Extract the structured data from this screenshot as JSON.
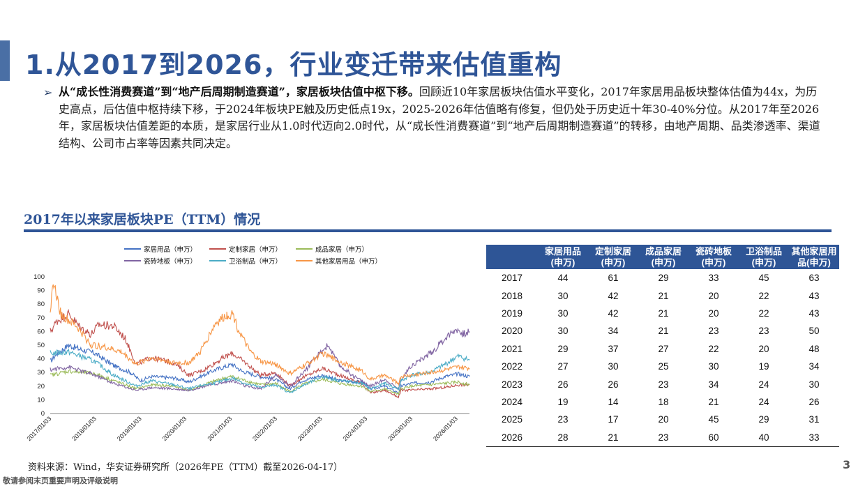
{
  "header": {
    "title_num": "1.",
    "title_text": "从2017到2026，行业变迁带来估值重构"
  },
  "bullet": {
    "bold": "从“成长性消费赛道”到“地产后周期制造赛道”，家居板块估值中枢下移。",
    "text": "回顾近10年家居板块估值水平变化，2017年家居用品板块整体估值为44x，为历史高点，后估值中枢持续下移，于2024年板块PE触及历史低点19x，2025-2026年估值略有修复，但仍处于历史近十年30-40%分位。从2017年至2026年，家居板块估值差距的本质，是家居行业从1.0时代迈向2.0时代，从“成长性消费赛道”到“地产后周期制造赛道”的转移，由地产周期、品类渗透率、渠道结构、公司市占率等因素共同决定。"
  },
  "section_title": "2017年以来家居板块PE（TTM）情况",
  "colors": {
    "accent": "#2f5597",
    "table_header": "#2e5596"
  },
  "chart_data": {
    "type": "line",
    "ylim": [
      0,
      100
    ],
    "yticks": [
      "0",
      "10",
      "20",
      "30",
      "40",
      "50",
      "60",
      "70",
      "80",
      "90",
      "100"
    ],
    "x_ticks": [
      "2017/01/03",
      "2018/01/03",
      "2019/01/03",
      "2020/01/03",
      "2021/01/03",
      "2022/01/03",
      "2023/01/03",
      "2024/01/03",
      "2025/01/03",
      "2026/01/03"
    ],
    "x_range": [
      "2017-01-03",
      "2026-04-17"
    ],
    "series": [
      {
        "name": "家居用品（申万）",
        "color": "#4472c4",
        "points": [
          [
            "2017-01-03",
            38
          ],
          [
            "2017-03-01",
            44
          ],
          [
            "2017-06-01",
            50
          ],
          [
            "2017-09-01",
            47
          ],
          [
            "2018-01-01",
            44
          ],
          [
            "2018-06-01",
            35
          ],
          [
            "2018-10-15",
            30
          ],
          [
            "2019-01-01",
            24
          ],
          [
            "2019-04-01",
            27
          ],
          [
            "2019-10-01",
            26
          ],
          [
            "2020-02-01",
            23
          ],
          [
            "2020-05-01",
            27
          ],
          [
            "2020-09-01",
            32
          ],
          [
            "2021-01-15",
            36
          ],
          [
            "2021-04-01",
            31
          ],
          [
            "2021-09-01",
            27
          ],
          [
            "2022-01-01",
            25
          ],
          [
            "2022-04-25",
            18
          ],
          [
            "2022-08-01",
            24
          ],
          [
            "2023-01-15",
            28
          ],
          [
            "2023-06-01",
            24
          ],
          [
            "2023-12-01",
            23
          ],
          [
            "2024-02-05",
            18
          ],
          [
            "2024-06-01",
            20
          ],
          [
            "2024-09-20",
            15
          ],
          [
            "2024-10-10",
            20
          ],
          [
            "2025-01-01",
            22
          ],
          [
            "2025-06-01",
            23
          ],
          [
            "2025-10-01",
            27
          ],
          [
            "2026-01-15",
            29
          ],
          [
            "2026-04-17",
            27
          ]
        ]
      },
      {
        "name": "定制家居（申万）",
        "color": "#c0504d",
        "points": [
          [
            "2017-01-03",
            60
          ],
          [
            "2017-03-01",
            68
          ],
          [
            "2017-06-01",
            73
          ],
          [
            "2017-09-01",
            63
          ],
          [
            "2017-12-01",
            58
          ],
          [
            "2018-02-01",
            65
          ],
          [
            "2018-06-01",
            64
          ],
          [
            "2018-09-01",
            55
          ],
          [
            "2018-12-01",
            36
          ],
          [
            "2019-04-01",
            41
          ],
          [
            "2019-10-01",
            37
          ],
          [
            "2020-02-01",
            28
          ],
          [
            "2020-06-01",
            32
          ],
          [
            "2020-10-01",
            39
          ],
          [
            "2021-01-15",
            44
          ],
          [
            "2021-05-01",
            37
          ],
          [
            "2021-09-01",
            28
          ],
          [
            "2022-01-01",
            30
          ],
          [
            "2022-04-25",
            20
          ],
          [
            "2022-08-01",
            26
          ],
          [
            "2023-01-15",
            33
          ],
          [
            "2023-06-01",
            28
          ],
          [
            "2023-12-01",
            22
          ],
          [
            "2024-02-05",
            15
          ],
          [
            "2024-06-01",
            17
          ],
          [
            "2024-09-20",
            12
          ],
          [
            "2024-10-10",
            17
          ],
          [
            "2025-01-01",
            17
          ],
          [
            "2025-06-01",
            18
          ],
          [
            "2025-10-01",
            19
          ],
          [
            "2026-01-15",
            21
          ],
          [
            "2026-04-17",
            21
          ]
        ]
      },
      {
        "name": "成品家居（申万）",
        "color": "#9bbb59",
        "points": [
          [
            "2017-01-03",
            28
          ],
          [
            "2017-06-01",
            31
          ],
          [
            "2018-01-01",
            29
          ],
          [
            "2018-06-01",
            24
          ],
          [
            "2018-12-01",
            18
          ],
          [
            "2019-04-01",
            21
          ],
          [
            "2019-10-01",
            20
          ],
          [
            "2020-02-01",
            17
          ],
          [
            "2020-06-01",
            21
          ],
          [
            "2020-10-01",
            25
          ],
          [
            "2021-01-15",
            27
          ],
          [
            "2021-05-01",
            24
          ],
          [
            "2021-09-01",
            21
          ],
          [
            "2022-01-01",
            22
          ],
          [
            "2022-04-25",
            16
          ],
          [
            "2022-08-01",
            21
          ],
          [
            "2023-01-15",
            25
          ],
          [
            "2023-06-01",
            22
          ],
          [
            "2023-12-01",
            20
          ],
          [
            "2024-02-05",
            16
          ],
          [
            "2024-06-01",
            18
          ],
          [
            "2024-09-20",
            14
          ],
          [
            "2024-10-10",
            18
          ],
          [
            "2025-01-01",
            20
          ],
          [
            "2025-06-01",
            21
          ],
          [
            "2025-10-01",
            22
          ],
          [
            "2026-01-15",
            23
          ],
          [
            "2026-04-17",
            21
          ]
        ]
      },
      {
        "name": "瓷砖地板（申万）",
        "color": "#8064a2",
        "points": [
          [
            "2017-01-03",
            32
          ],
          [
            "2017-06-01",
            34
          ],
          [
            "2018-01-01",
            28
          ],
          [
            "2018-06-01",
            22
          ],
          [
            "2018-12-01",
            17
          ],
          [
            "2019-04-01",
            19
          ],
          [
            "2019-10-01",
            18
          ],
          [
            "2020-02-01",
            17
          ],
          [
            "2020-06-01",
            20
          ],
          [
            "2020-10-01",
            22
          ],
          [
            "2021-01-15",
            24
          ],
          [
            "2021-05-01",
            20
          ],
          [
            "2021-09-01",
            18
          ],
          [
            "2022-01-01",
            28
          ],
          [
            "2022-04-25",
            20
          ],
          [
            "2022-09-01",
            32
          ],
          [
            "2023-01-01",
            45
          ],
          [
            "2023-03-01",
            50
          ],
          [
            "2023-06-01",
            35
          ],
          [
            "2023-10-01",
            27
          ],
          [
            "2024-02-05",
            20
          ],
          [
            "2024-06-01",
            25
          ],
          [
            "2024-09-20",
            18
          ],
          [
            "2024-10-10",
            25
          ],
          [
            "2025-01-01",
            35
          ],
          [
            "2025-04-01",
            40
          ],
          [
            "2025-07-01",
            46
          ],
          [
            "2025-10-01",
            55
          ],
          [
            "2026-01-01",
            62
          ],
          [
            "2026-03-01",
            58
          ],
          [
            "2026-04-17",
            60
          ]
        ]
      },
      {
        "name": "卫浴制品（申万）",
        "color": "#4bacc6",
        "points": [
          [
            "2017-01-03",
            44
          ],
          [
            "2017-06-01",
            45
          ],
          [
            "2018-01-01",
            38
          ],
          [
            "2018-06-01",
            28
          ],
          [
            "2018-12-01",
            20
          ],
          [
            "2019-04-01",
            24
          ],
          [
            "2019-10-01",
            21
          ],
          [
            "2020-02-01",
            18
          ],
          [
            "2020-06-01",
            21
          ],
          [
            "2020-10-01",
            23
          ],
          [
            "2021-01-15",
            26
          ],
          [
            "2021-05-01",
            22
          ],
          [
            "2021-09-01",
            19
          ],
          [
            "2022-01-01",
            21
          ],
          [
            "2022-04-25",
            15
          ],
          [
            "2022-08-01",
            20
          ],
          [
            "2023-01-15",
            27
          ],
          [
            "2023-06-01",
            24
          ],
          [
            "2023-12-01",
            22
          ],
          [
            "2024-02-05",
            18
          ],
          [
            "2024-06-01",
            22
          ],
          [
            "2024-09-20",
            18
          ],
          [
            "2024-10-10",
            24
          ],
          [
            "2025-01-01",
            28
          ],
          [
            "2025-06-01",
            30
          ],
          [
            "2025-10-01",
            36
          ],
          [
            "2026-01-15",
            42
          ],
          [
            "2026-04-17",
            39
          ]
        ]
      },
      {
        "name": "其他家居用品（申万）",
        "color": "#f79646",
        "points": [
          [
            "2017-01-03",
            78
          ],
          [
            "2017-02-01",
            95
          ],
          [
            "2017-04-01",
            72
          ],
          [
            "2017-08-01",
            64
          ],
          [
            "2017-12-01",
            50
          ],
          [
            "2018-03-01",
            49
          ],
          [
            "2018-08-01",
            45
          ],
          [
            "2018-12-01",
            36
          ],
          [
            "2019-04-01",
            41
          ],
          [
            "2019-10-01",
            37
          ],
          [
            "2020-02-01",
            37
          ],
          [
            "2020-05-01",
            45
          ],
          [
            "2020-09-01",
            66
          ],
          [
            "2020-12-01",
            72
          ],
          [
            "2021-01-20",
            73
          ],
          [
            "2021-03-01",
            62
          ],
          [
            "2021-06-01",
            46
          ],
          [
            "2021-09-01",
            38
          ],
          [
            "2022-01-01",
            36
          ],
          [
            "2022-04-25",
            29
          ],
          [
            "2022-08-01",
            34
          ],
          [
            "2023-01-15",
            44
          ],
          [
            "2023-06-01",
            38
          ],
          [
            "2023-12-01",
            31
          ],
          [
            "2024-02-05",
            25
          ],
          [
            "2024-06-01",
            28
          ],
          [
            "2024-09-20",
            22
          ],
          [
            "2024-10-10",
            27
          ],
          [
            "2025-01-01",
            28
          ],
          [
            "2025-06-01",
            30
          ],
          [
            "2025-10-01",
            32
          ],
          [
            "2026-01-15",
            34
          ],
          [
            "2026-04-17",
            33
          ]
        ]
      }
    ]
  },
  "table": {
    "headers": [
      [
        "",
        ""
      ],
      [
        "家居用品",
        "(申万)"
      ],
      [
        "定制家居",
        "(申万)"
      ],
      [
        "成品家居",
        "(申万)"
      ],
      [
        "瓷砖地板",
        "(申万)"
      ],
      [
        "卫浴制品",
        "(申万)"
      ],
      [
        "其他家居用",
        "品(申万)"
      ]
    ],
    "rows": [
      [
        "2017",
        "44",
        "61",
        "29",
        "33",
        "45",
        "63"
      ],
      [
        "2018",
        "30",
        "42",
        "21",
        "20",
        "22",
        "43"
      ],
      [
        "2019",
        "30",
        "42",
        "21",
        "20",
        "22",
        "43"
      ],
      [
        "2020",
        "30",
        "34",
        "21",
        "23",
        "23",
        "50"
      ],
      [
        "2021",
        "29",
        "37",
        "27",
        "22",
        "20",
        "48"
      ],
      [
        "2022",
        "27",
        "30",
        "25",
        "30",
        "19",
        "34"
      ],
      [
        "2023",
        "26",
        "26",
        "23",
        "34",
        "24",
        "30"
      ],
      [
        "2024",
        "19",
        "14",
        "18",
        "21",
        "24",
        "26"
      ],
      [
        "2025",
        "23",
        "17",
        "20",
        "45",
        "29",
        "31"
      ],
      [
        "2026",
        "28",
        "21",
        "23",
        "60",
        "40",
        "33"
      ]
    ]
  },
  "source": "资料来源：Wind，华安证券研究所（2026年PE（TTM）截至2026-04-17）",
  "disclaimer": "敬请参阅末页重要声明及评级说明",
  "page_number": "3"
}
